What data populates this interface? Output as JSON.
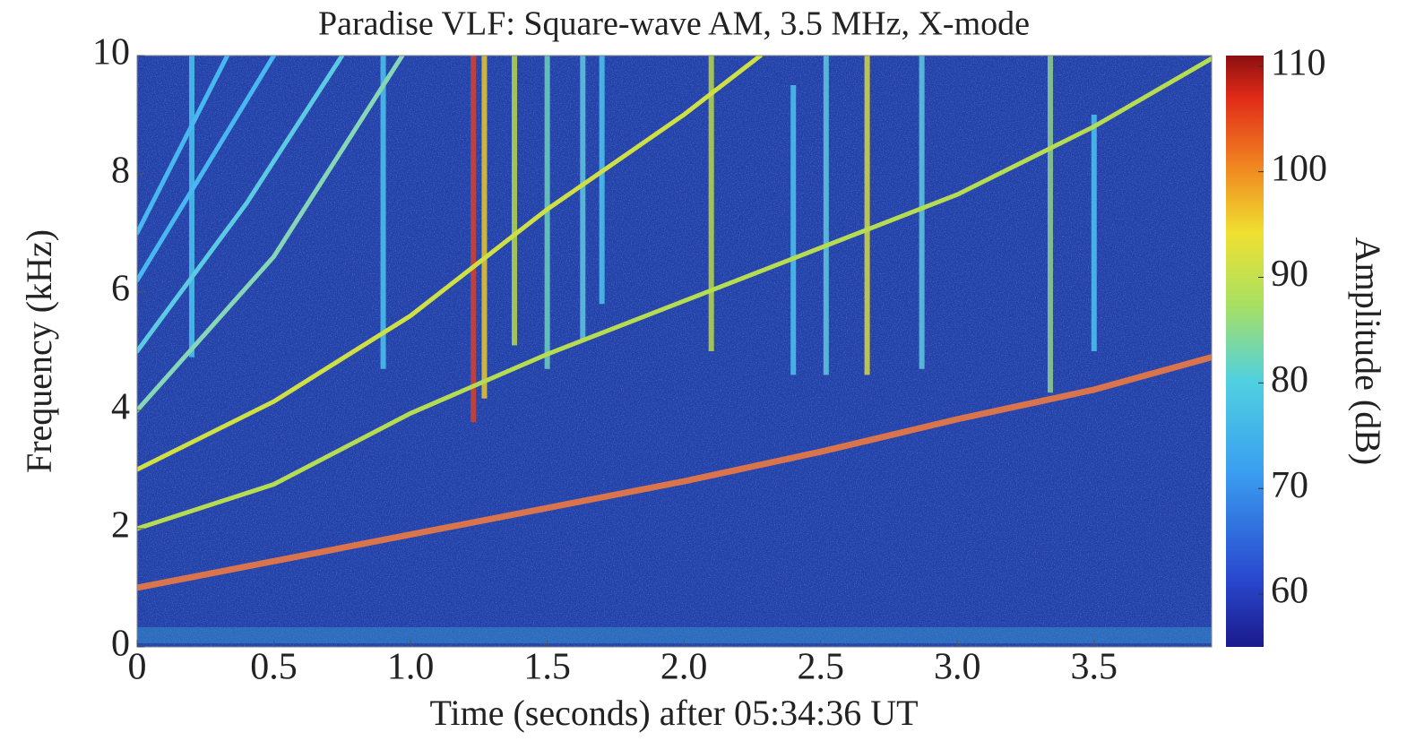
{
  "chart_data": {
    "type": "spectrogram",
    "title": "Paradise VLF: Square-wave AM, 3.5 MHz, X-mode",
    "xlabel": "Time (seconds) after 05:34:36 UT",
    "ylabel": "Frequency (kHz)",
    "xlim": [
      0,
      3.93
    ],
    "xticks": [
      0,
      0.5,
      {
        "value": 1,
        "label": "1.0"
      },
      1.5,
      {
        "value": 2,
        "label": "2.0"
      },
      2.5,
      {
        "value": 3,
        "label": "3.0"
      },
      3.5
    ],
    "ylim": [
      0,
      10
    ],
    "yticks": [
      0,
      2,
      4,
      6,
      8,
      10
    ],
    "background_color": "#2340a8",
    "series": [
      {
        "color": "#d9744c",
        "x": [
          0,
          0.5,
          1,
          1.5,
          2,
          2.5,
          3,
          3.5,
          3.93
        ],
        "values": [
          1.0,
          1.45,
          1.9,
          2.35,
          2.8,
          3.3,
          3.85,
          4.35,
          4.9
        ]
      },
      {
        "color": "#b6dc52",
        "x": [
          0,
          0.5,
          1,
          1.5,
          2,
          2.5,
          3,
          3.5,
          3.93
        ],
        "values": [
          2.0,
          2.75,
          3.95,
          4.95,
          5.85,
          6.75,
          7.65,
          8.8,
          9.95
        ]
      },
      {
        "color": "#cfe044",
        "x": [
          0,
          0.5,
          1,
          1.5,
          2,
          2.28
        ],
        "values": [
          3.0,
          4.15,
          5.6,
          7.4,
          9.0,
          10
        ]
      },
      {
        "color": "#86d6b8",
        "x": [
          0,
          0.5,
          0.97
        ],
        "values": [
          4.0,
          6.6,
          10
        ]
      },
      {
        "color": "#5ccae2",
        "x": [
          0,
          0.4,
          0.75
        ],
        "values": [
          5.0,
          7.5,
          10
        ]
      },
      {
        "color": "#4ab8f0",
        "x": [
          0,
          0.5
        ],
        "values": [
          6.2,
          10
        ]
      },
      {
        "color": "#4ab8f0",
        "x": [
          0,
          0.33
        ],
        "values": [
          7.0,
          10
        ]
      }
    ],
    "bursts": [
      {
        "t": 0.2,
        "fmin": 4.9,
        "fmax": 10,
        "color": "#4cc4ee"
      },
      {
        "t": 0.9,
        "fmin": 4.7,
        "fmax": 10,
        "color": "#4cc4ee"
      },
      {
        "t": 1.23,
        "fmin": 3.8,
        "fmax": 10,
        "color": "#d8402a"
      },
      {
        "t": 1.27,
        "fmin": 4.2,
        "fmax": 10,
        "color": "#e8c830"
      },
      {
        "t": 1.38,
        "fmin": 5.1,
        "fmax": 10,
        "color": "#b8d848"
      },
      {
        "t": 1.5,
        "fmin": 4.7,
        "fmax": 10,
        "color": "#70d0c0"
      },
      {
        "t": 1.63,
        "fmin": 5.2,
        "fmax": 10,
        "color": "#60c8e0"
      },
      {
        "t": 1.7,
        "fmin": 5.8,
        "fmax": 10,
        "color": "#4cc4ee"
      },
      {
        "t": 2.1,
        "fmin": 5.0,
        "fmax": 10,
        "color": "#b8d848"
      },
      {
        "t": 2.4,
        "fmin": 4.6,
        "fmax": 9.5,
        "color": "#4cc4ee"
      },
      {
        "t": 2.52,
        "fmin": 4.6,
        "fmax": 10,
        "color": "#60c8e0"
      },
      {
        "t": 2.67,
        "fmin": 4.6,
        "fmax": 10,
        "color": "#d8d840"
      },
      {
        "t": 2.87,
        "fmin": 4.7,
        "fmax": 10,
        "color": "#60c8e0"
      },
      {
        "t": 3.34,
        "fmin": 4.3,
        "fmax": 10,
        "color": "#90d090"
      },
      {
        "t": 3.5,
        "fmin": 5.0,
        "fmax": 9.0,
        "color": "#4cc4ee"
      }
    ],
    "colorbar": {
      "label": "Amplitude (dB)",
      "lim": [
        55,
        111
      ],
      "ticks": [
        60,
        70,
        80,
        90,
        100,
        110
      ]
    }
  }
}
